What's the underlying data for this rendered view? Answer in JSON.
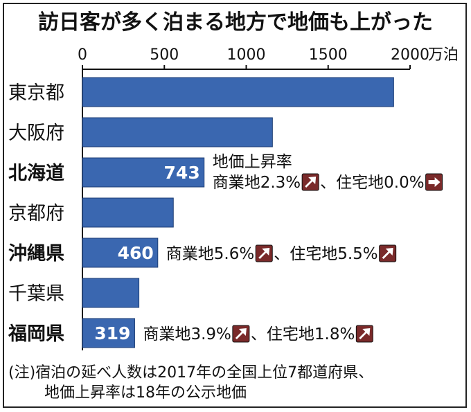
{
  "chart_data": {
    "type": "bar",
    "orientation": "horizontal",
    "title": "訪日客が多く泊まる地方で地価も上がった",
    "unit": "万泊",
    "xlim": [
      0,
      2000
    ],
    "ticks": [
      "0",
      "500",
      "1000",
      "1500",
      "2000"
    ],
    "tick_values": [
      0,
      500,
      1000,
      1500,
      2000
    ],
    "categories": [
      "東京都",
      "大阪府",
      "北海道",
      "京都府",
      "沖縄県",
      "千葉県",
      "福岡県"
    ],
    "bold_categories": [
      false,
      false,
      true,
      false,
      true,
      false,
      true
    ],
    "values": [
      1900,
      1160,
      743,
      555,
      460,
      345,
      319
    ],
    "data_labels": [
      "",
      "",
      "743",
      "",
      "460",
      "",
      "319"
    ],
    "annotations": [
      {
        "category": "北海道",
        "lines": [
          "地価上昇率",
          "商業地2.3%",
          "、住宅地0.0%"
        ],
        "arrows": [
          "up-right-arrow-icon",
          "right-arrow-icon"
        ]
      },
      {
        "category": "沖縄県",
        "lines": [
          "商業地5.6%",
          "、住宅地5.5%"
        ],
        "arrows": [
          "up-right-arrow-icon",
          "up-right-arrow-icon"
        ]
      },
      {
        "category": "福岡県",
        "lines": [
          "商業地3.9%",
          "、住宅地1.8%"
        ],
        "arrows": [
          "up-right-arrow-icon",
          "up-right-arrow-icon"
        ]
      }
    ],
    "bar_color": "#3a67b0",
    "arrow_box_color": "#7a2a2a",
    "note": [
      "(注)宿泊の延べ人数は2017年の全国上位7都道府県、",
      "地価上昇率は18年の公示地価"
    ]
  }
}
